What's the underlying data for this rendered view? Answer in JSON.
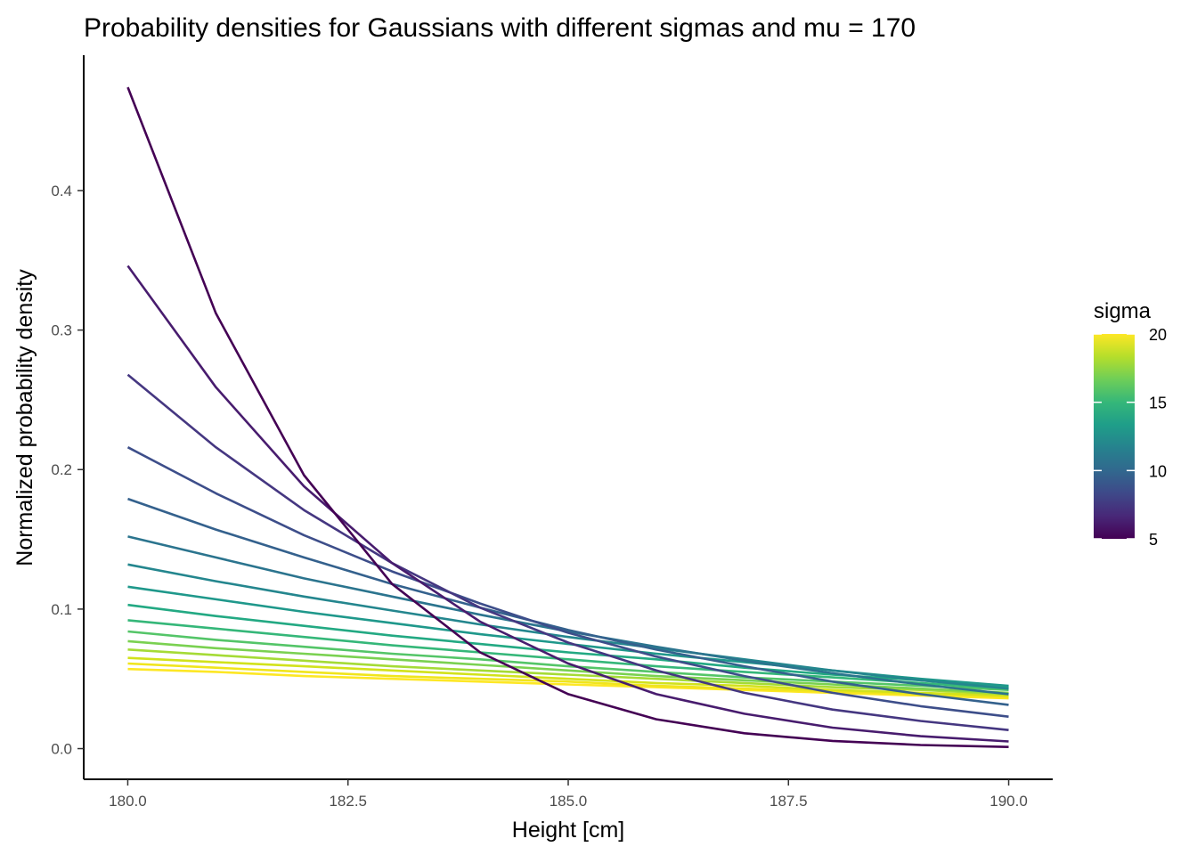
{
  "chart_data": {
    "type": "line",
    "title": "Probability densities for Gaussians with different sigmas and mu = 170",
    "xlabel": "Height [cm]",
    "ylabel": "Normalized probability density",
    "xlim": [
      179.5,
      190.5
    ],
    "ylim": [
      -0.022,
      0.497
    ],
    "x_ticks": [
      180.0,
      182.5,
      185.0,
      187.5,
      190.0
    ],
    "x_tick_labels": [
      "180.0",
      "182.5",
      "185.0",
      "187.5",
      "190.0"
    ],
    "y_ticks": [
      0.0,
      0.1,
      0.2,
      0.3,
      0.4
    ],
    "y_tick_labels": [
      "0.0",
      "0.1",
      "0.2",
      "0.3",
      "0.4"
    ],
    "grid": false,
    "x": [
      180,
      181,
      182,
      183,
      184,
      185,
      186,
      187,
      188,
      189,
      190
    ],
    "series": [
      {
        "name": "5",
        "color": "#440154",
        "values": [
          0.474,
          0.312,
          0.196,
          0.118,
          0.069,
          0.039,
          0.021,
          0.011,
          0.0055,
          0.0026,
          0.0012
        ]
      },
      {
        "name": "6",
        "color": "#481c6e",
        "values": [
          0.346,
          0.259,
          0.188,
          0.133,
          0.091,
          0.061,
          0.039,
          0.025,
          0.015,
          0.0089,
          0.0051
        ]
      },
      {
        "name": "7",
        "color": "#453781",
        "values": [
          0.268,
          0.216,
          0.171,
          0.133,
          0.101,
          0.076,
          0.056,
          0.04,
          0.028,
          0.0198,
          0.0133
        ]
      },
      {
        "name": "8",
        "color": "#3d4e8a",
        "values": [
          0.216,
          0.183,
          0.153,
          0.127,
          0.104,
          0.083,
          0.066,
          0.052,
          0.04,
          0.0304,
          0.0229
        ]
      },
      {
        "name": "9",
        "color": "#34618d",
        "values": [
          0.179,
          0.157,
          0.137,
          0.118,
          0.101,
          0.085,
          0.071,
          0.059,
          0.048,
          0.039,
          0.0314
        ]
      },
      {
        "name": "10",
        "color": "#2b748e",
        "values": [
          0.152,
          0.137,
          0.122,
          0.109,
          0.096,
          0.084,
          0.073,
          0.063,
          0.054,
          0.046,
          0.039
        ]
      },
      {
        "name": "11",
        "color": "#24868e",
        "values": [
          0.132,
          0.12,
          0.109,
          0.099,
          0.089,
          0.08,
          0.072,
          0.064,
          0.056,
          0.049,
          0.043
        ]
      },
      {
        "name": "12",
        "color": "#1f988b",
        "values": [
          0.116,
          0.107,
          0.098,
          0.09,
          0.082,
          0.075,
          0.068,
          0.062,
          0.056,
          0.05,
          0.045
        ]
      },
      {
        "name": "13",
        "color": "#23a983",
        "values": [
          0.103,
          0.095,
          0.088,
          0.081,
          0.075,
          0.069,
          0.064,
          0.058,
          0.053,
          0.049,
          0.044
        ]
      },
      {
        "name": "14",
        "color": "#35b779",
        "values": [
          0.092,
          0.086,
          0.08,
          0.074,
          0.069,
          0.064,
          0.059,
          0.055,
          0.051,
          0.047,
          0.043
        ]
      },
      {
        "name": "15",
        "color": "#54c568",
        "values": [
          0.084,
          0.078,
          0.073,
          0.068,
          0.064,
          0.059,
          0.055,
          0.051,
          0.048,
          0.045,
          0.042
        ]
      },
      {
        "name": "16",
        "color": "#7ad151",
        "values": [
          0.077,
          0.072,
          0.068,
          0.064,
          0.06,
          0.056,
          0.052,
          0.049,
          0.046,
          0.043,
          0.04
        ]
      },
      {
        "name": "17",
        "color": "#a5db36",
        "values": [
          0.071,
          0.067,
          0.063,
          0.059,
          0.056,
          0.053,
          0.05,
          0.047,
          0.044,
          0.042,
          0.039
        ]
      },
      {
        "name": "18",
        "color": "#d2e21b",
        "values": [
          0.065,
          0.062,
          0.059,
          0.056,
          0.053,
          0.05,
          0.047,
          0.045,
          0.042,
          0.04,
          0.038
        ]
      },
      {
        "name": "19",
        "color": "#f0e51c",
        "values": [
          0.061,
          0.058,
          0.055,
          0.052,
          0.05,
          0.048,
          0.045,
          0.043,
          0.041,
          0.039,
          0.037
        ]
      },
      {
        "name": "20",
        "color": "#fde725",
        "values": [
          0.057,
          0.055,
          0.052,
          0.05,
          0.048,
          0.046,
          0.044,
          0.042,
          0.04,
          0.038,
          0.036
        ]
      }
    ],
    "legend": {
      "title": "sigma",
      "type": "colorbar",
      "placement": "right",
      "range": [
        5,
        20
      ],
      "ticks": [
        5,
        10,
        15,
        20
      ],
      "tick_labels": [
        "5",
        "10",
        "15",
        "20"
      ],
      "colors": [
        "#440154",
        "#482878",
        "#3e4989",
        "#31688e",
        "#26828e",
        "#1f9e89",
        "#35b779",
        "#6ece58",
        "#b5de2b",
        "#fde725"
      ]
    }
  }
}
